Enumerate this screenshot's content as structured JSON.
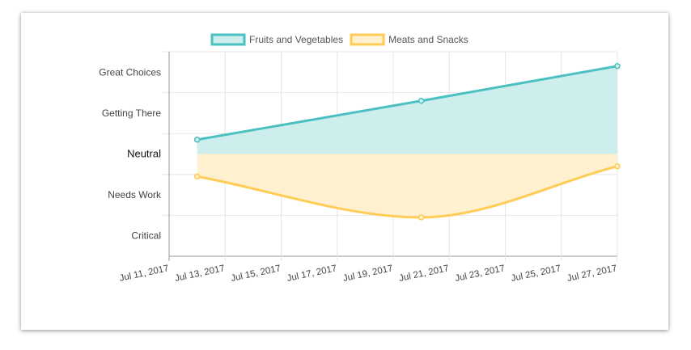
{
  "chart_data": {
    "type": "area",
    "title": "",
    "xlabel": "",
    "ylabel": "",
    "grid": true,
    "legend_position": "top",
    "x_ticks": [
      "Jul 11, 2017",
      "Jul 13, 2017",
      "Jul 15, 2017",
      "Jul 17, 2017",
      "Jul 19, 2017",
      "Jul 21, 2017",
      "Jul 23, 2017",
      "Jul 25, 2017",
      "Jul 27, 2017"
    ],
    "xlim": [
      "2017-07-11",
      "2017-07-27"
    ],
    "y_categories": [
      "Critical",
      "Needs Work",
      "Neutral",
      "Getting There",
      "Great Choices"
    ],
    "ylim": [
      -2.5,
      2.5
    ],
    "series": [
      {
        "name": "Fruits and Vegetables",
        "color": "#4bc0c0",
        "fill": "#cdeeed",
        "x": [
          "2017-07-12",
          "2017-07-20",
          "2017-07-27"
        ],
        "values": [
          0.35,
          1.3,
          2.15
        ]
      },
      {
        "name": "Meats and Snacks",
        "color": "#ffcd56",
        "fill": "#fff0cf",
        "x": [
          "2017-07-12",
          "2017-07-20",
          "2017-07-27"
        ],
        "values": [
          -0.55,
          -1.55,
          -0.3
        ]
      }
    ]
  }
}
